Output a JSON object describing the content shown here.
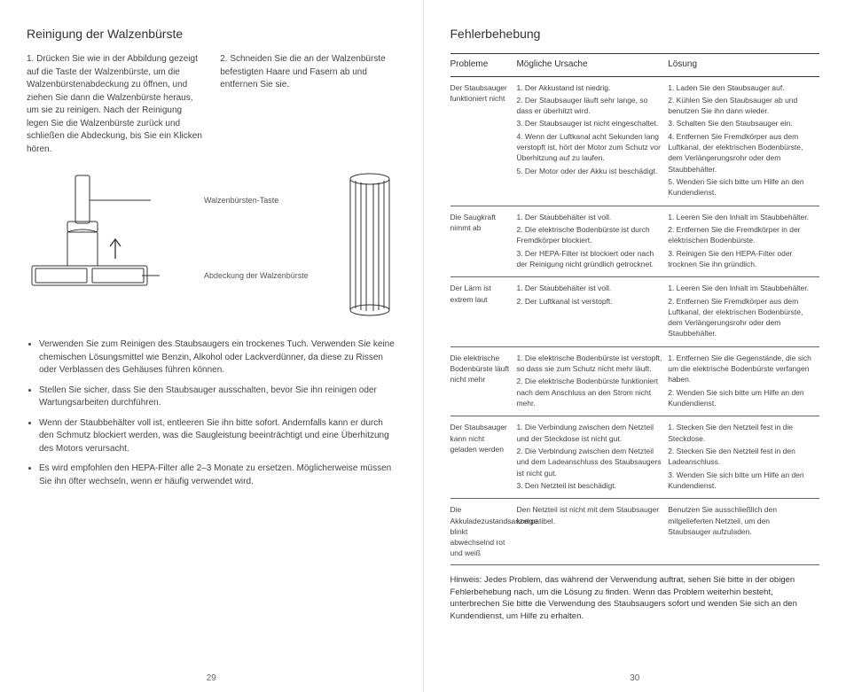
{
  "left": {
    "title": "Reinigung der Walzenbürste",
    "step1": "1. Drücken Sie wie in der Abbildung gezeigt auf die Taste der Walzenbürste, um die Walzenbürstenabdeckung zu öffnen, und ziehen Sie dann die Walzenbürste heraus, um sie zu reinigen. Nach der Reinigung legen Sie die Walzenbürste zurück und schließen die Abdeckung, bis Sie ein Klicken hören.",
    "step2": "2. Schneiden Sie die an der Walzenbürste befestigten Haare und Fasern ab und entfernen Sie sie.",
    "label_button": "Walzenbürsten-Taste",
    "label_cover": "Abdeckung der Walzenbürste",
    "bullets": [
      "Verwenden Sie zum Reinigen des Staubsaugers ein trockenes Tuch. Verwenden Sie keine chemischen Lösungsmittel wie Benzin, Alkohol oder Lackverdünner, da diese zu Rissen oder Verblassen des Gehäuses führen können.",
      "Stellen Sie sicher, dass Sie den Staubsauger ausschalten, bevor Sie ihn reinigen oder Wartungsarbeiten durchführen.",
      "Wenn der Staubbehälter voll ist, entleeren Sie ihn bitte sofort. Andernfalls kann er durch den Schmutz blockiert werden, was die Saugleistung beeinträchtigt und eine Überhitzung des Motors verursacht.",
      "Es wird empfohlen den HEPA-Filter alle 2–3 Monate zu ersetzen. Möglicherweise müssen Sie ihn öfter wechseln, wenn er häufig verwendet wird."
    ],
    "pagenum": "29"
  },
  "right": {
    "title": "Fehlerbehebung",
    "headers": {
      "prob": "Probleme",
      "cause": "Mögliche Ursache",
      "sol": "Lösung"
    },
    "rows": [
      {
        "prob": "Der Staubsauger funktioniert nicht",
        "causes": [
          "1. Der Akkustand ist niedrig.",
          "2. Der Staubsauger läuft sehr lange, so dass er überhitzt wird.",
          "3. Der Staubsauger ist nicht eingeschaltet.",
          "4. Wenn der Luftkanal acht Sekunden lang verstopft ist, hört der Motor zum Schutz vor Überhitzung auf zu laufen.",
          "5. Der Motor oder der Akku ist beschädigt."
        ],
        "sols": [
          "1. Laden Sie den Staubsauger auf.",
          "2. Kühlen Sie den Staubsauger ab und benutzen Sie ihn dann wieder.",
          "3. Schalten Sie den Staubsauger ein.",
          "4. Entfernen Sie Fremdkörper aus dem Luftkanal, der elektrischen Bodenbürste, dem Verlängerungsrohr oder dem Staubbehälter.",
          "5. Wenden Sie sich bitte um Hilfe an den Kundendienst."
        ]
      },
      {
        "prob": "Die Saugkraft nimmt ab",
        "causes": [
          "1. Der Staubbehälter ist voll.",
          "2. Die elektrische Bodenbürste ist durch Fremdkörper blockiert.",
          "3. Der HEPA-Filter ist blockiert oder nach der Reinigung nicht gründlich getrocknet."
        ],
        "sols": [
          "1. Leeren Sie den Inhalt im Staubbehälter.",
          "2. Entfernen Sie die Fremdkörper in der elektrischen Bodenbürste.",
          "3. Reinigen Sie den HEPA-Filter oder trocknen Sie ihn gründlich."
        ]
      },
      {
        "prob": "Der Lärm ist extrem laut",
        "causes": [
          "1. Der Staubbehälter ist voll.",
          "2. Der Luftkanal ist verstopft."
        ],
        "sols": [
          "1. Leeren Sie den Inhalt im Staubbehälter.",
          "2. Entfernen Sie Fremdkörper aus dem Luftkanal, der elektrischen Bodenbürste, dem Verlängerungsrohr oder dem Staubbehälter."
        ]
      },
      {
        "prob": "Die elektrische Bodenbürste läuft nicht mehr",
        "causes": [
          "1. Die elektrische Bodenbürste ist verstopft, so dass sie zum Schutz nicht mehr läuft.",
          "2. Die elektrische Bodenbürste funktioniert nach dem Anschluss an den Strom nicht mehr."
        ],
        "sols": [
          "1. Entfernen Sie die Gegenstände, die sich um die elektrische Bodenbürste verfangen haben.",
          "2. Wenden Sie sich bitte um Hilfe an den Kundendienst."
        ]
      },
      {
        "prob": "Der Staubsauger kann nicht geladen werden",
        "causes": [
          "1. Die Verbindung zwischen dem Netzteil und der Steckdose ist nicht gut.",
          "2. Die Verbindung zwischen dem Netzteil und dem Ladeanschluss des Staubsaugers ist nicht gut.",
          "3. Den Netzteil ist beschädigt."
        ],
        "sols": [
          "1. Stecken Sie den Netzteil fest in die Steckdose.",
          "2. Stecken Sie den Netzteil fest in den Ladeanschluss.",
          "3. Wenden Sie sich bitte um Hilfe an den Kundendienst."
        ]
      },
      {
        "prob": "Die Akkuladezustandsanzeige blinkt abwechselnd rot und weiß",
        "causes": [
          "Den Netzteil ist nicht mit dem Staubsauger kompatibel."
        ],
        "sols": [
          "Benutzen Sie ausschließlich den mitgelieferten Netzteil, um den Staubsauger aufzuladen."
        ]
      }
    ],
    "note": "Hinweis: Jedes Problem, das während der Verwendung auftrat, sehen Sie bitte in der obigen Fehlerbehebung nach, um die Lösung zu finden. Wenn das Problem weiterhin besteht, unterbrechen Sie bitte die Verwendung des Staubsaugers sofort und wenden Sie sich an den Kundendienst, um Hilfe zu erhalten.",
    "pagenum": "30"
  },
  "style": {
    "stroke": "#333333",
    "text_color": "#444444",
    "background": "#ffffff",
    "divider": "#e5e5e5"
  }
}
